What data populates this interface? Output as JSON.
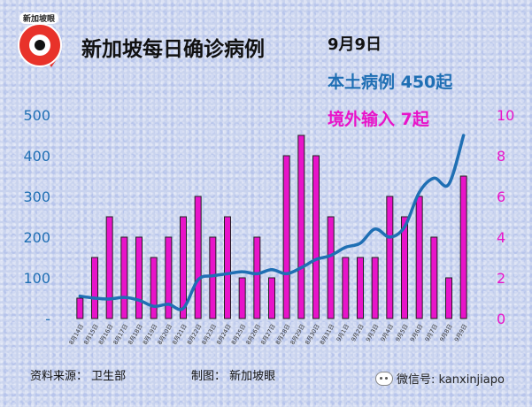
{
  "header": {
    "logo_text": "新加坡眼",
    "title": "新加坡每日确诊病例",
    "date": "9月9日",
    "local_label": "本土病例 450起",
    "imported_label": "境外输入 7起"
  },
  "footer": {
    "source": "资料来源：  卫生部",
    "producer": "制图：  新加坡眼",
    "wechat": "微信号: kanxinjiapo"
  },
  "colors": {
    "bar": "#e813c9",
    "line": "#1f6fb4",
    "left_axis": "#1f6fb4",
    "right_axis": "#e813c9"
  },
  "chart_data": {
    "type": "bar",
    "categories": [
      "8月14日",
      "8月15日",
      "8月16日",
      "8月17日",
      "8月18日",
      "8月19日",
      "8月20日",
      "8月21日",
      "8月22日",
      "8月23日",
      "8月24日",
      "8月25日",
      "8月26日",
      "8月27日",
      "8月28日",
      "8月29日",
      "8月30日",
      "8月31日",
      "9月1日",
      "9月2日",
      "9月3日",
      "9月4日",
      "9月5日",
      "9月6日",
      "9月7日",
      "9月8日",
      "9月9日"
    ],
    "left_axis": {
      "ticks": [
        "-",
        "100",
        "200",
        "300",
        "400",
        "500"
      ],
      "ylim": [
        0,
        500
      ]
    },
    "right_axis": {
      "ticks": [
        "0",
        "2",
        "4",
        "6",
        "8",
        "10"
      ],
      "ylim": [
        0,
        10
      ]
    },
    "series": [
      {
        "name": "境外输入",
        "type": "bar",
        "axis": "right",
        "values": [
          1,
          3,
          5,
          4,
          4,
          3,
          4,
          5,
          6,
          4,
          5,
          2,
          4,
          2,
          8,
          9,
          8,
          5,
          3,
          3,
          3,
          6,
          5,
          6,
          4,
          2,
          7
        ]
      },
      {
        "name": "本土病例",
        "type": "line",
        "axis": "left",
        "values": [
          55,
          50,
          48,
          52,
          45,
          30,
          35,
          25,
          95,
          105,
          110,
          115,
          110,
          120,
          110,
          125,
          145,
          155,
          175,
          185,
          220,
          200,
          225,
          310,
          345,
          330,
          450
        ]
      }
    ]
  }
}
